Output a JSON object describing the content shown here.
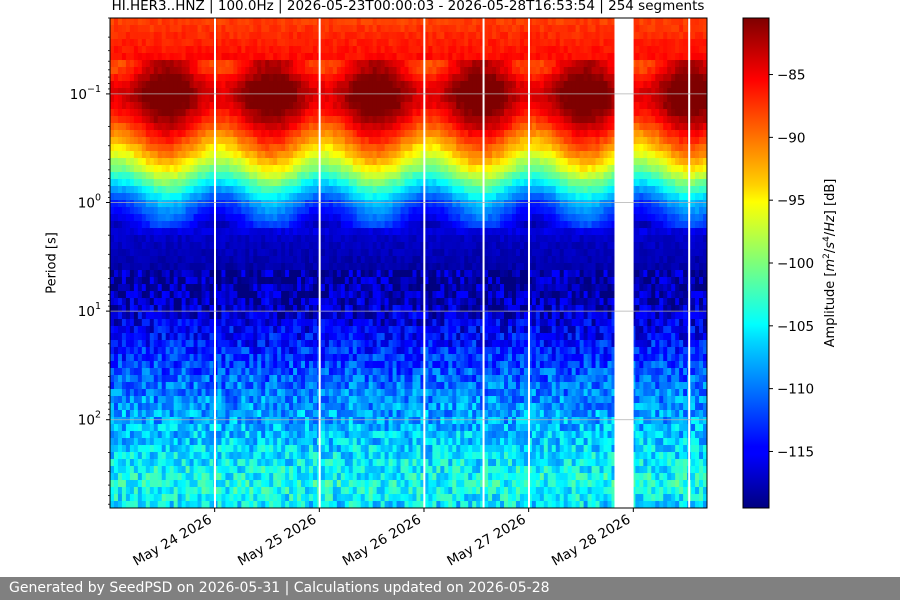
{
  "title": "HI.HER3..HNZ | 100.0Hz | 2026-05-23T00:00:03 - 2026-05-28T16:53:54 | 254 segments",
  "footer": "Generated by SeedPSD on 2026-05-31 | Calculations updated on 2026-05-28",
  "chart_data": {
    "type": "heatmap",
    "title": "HI.HER3..HNZ | 100.0Hz | 2026-05-23T00:00:03 - 2026-05-28T16:53:54 | 254 segments",
    "x_axis": {
      "type": "time",
      "range": [
        "2026-05-23T00:00:03",
        "2026-05-28T16:53:54"
      ],
      "ticks": [
        {
          "date": "2026-05-24",
          "label": "May 24 2026"
        },
        {
          "date": "2026-05-25",
          "label": "May 25 2026"
        },
        {
          "date": "2026-05-26",
          "label": "May 26 2026"
        },
        {
          "date": "2026-05-27",
          "label": "May 27 2026"
        },
        {
          "date": "2026-05-28",
          "label": "May 28 2026"
        }
      ]
    },
    "y_axis": {
      "label": "Period [s]",
      "scale": "log",
      "inverted": true,
      "range": [
        0.02,
        650
      ],
      "ticks": [
        {
          "value": 0.1,
          "base": "10",
          "exp": "−1"
        },
        {
          "value": 1,
          "base": "10",
          "exp": "0"
        },
        {
          "value": 10,
          "base": "10",
          "exp": "1"
        },
        {
          "value": 100,
          "base": "10",
          "exp": "2"
        }
      ],
      "grid": true
    },
    "colorbar": {
      "label": "Amplitude [m²/s⁴/Hz] [dB]",
      "colormap": "jet",
      "range": [
        -119.5,
        -80.5
      ],
      "ticks": [
        -85,
        -90,
        -95,
        -100,
        -105,
        -110,
        -115
      ]
    },
    "data_gaps": [
      {
        "start": "2026-05-23T23:51",
        "end": "2026-05-24T00:00"
      },
      {
        "start": "2026-05-24T23:51",
        "end": "2026-05-25T00:00"
      },
      {
        "start": "2026-05-25T23:51",
        "end": "2026-05-26T00:00"
      },
      {
        "start": "2026-05-26T13:26",
        "end": "2026-05-26T13:35"
      },
      {
        "start": "2026-05-26T23:51",
        "end": "2026-05-27T00:00"
      },
      {
        "start": "2026-05-27T19:41",
        "end": "2026-05-28T00:04"
      },
      {
        "start": "2026-05-28T12:35",
        "end": "2026-05-28T12:45"
      }
    ],
    "period_profile_db": [
      {
        "period": 0.02,
        "db": -88
      },
      {
        "period": 0.06,
        "db": -85
      },
      {
        "period": 0.08,
        "db": -82
      },
      {
        "period": 0.1,
        "db": -81
      },
      {
        "period": 0.13,
        "db": -82
      },
      {
        "period": 0.18,
        "db": -85
      },
      {
        "period": 0.25,
        "db": -89
      },
      {
        "period": 0.35,
        "db": -93
      },
      {
        "period": 0.5,
        "db": -98
      },
      {
        "period": 0.7,
        "db": -104
      },
      {
        "period": 1.0,
        "db": -110
      },
      {
        "period": 1.5,
        "db": -114
      },
      {
        "period": 2,
        "db": -117
      },
      {
        "period": 5,
        "db": -118.5
      },
      {
        "period": 10,
        "db": -117
      },
      {
        "period": 20,
        "db": -114
      },
      {
        "period": 50,
        "db": -110
      },
      {
        "period": 100,
        "db": -108
      },
      {
        "period": 200,
        "db": -106
      },
      {
        "period": 400,
        "db": -104
      },
      {
        "period": 650,
        "db": -106
      }
    ]
  }
}
